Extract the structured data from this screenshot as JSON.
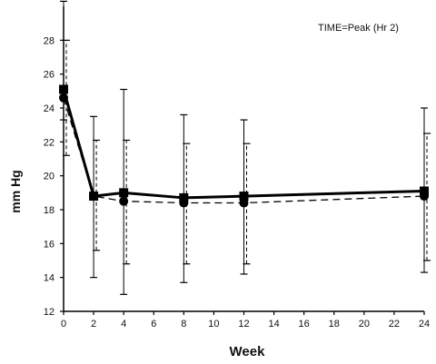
{
  "chart_data": {
    "type": "line",
    "title": "",
    "annotation": "TIME=Peak (Hr 2)",
    "xlabel": "Week",
    "ylabel": "mm Hg",
    "xlim": [
      0,
      24
    ],
    "ylim": [
      12,
      30
    ],
    "x_ticks": [
      0,
      2,
      4,
      6,
      8,
      10,
      12,
      14,
      16,
      18,
      20,
      22,
      24
    ],
    "y_ticks": [
      12,
      14,
      16,
      18,
      20,
      22,
      24,
      26,
      28
    ],
    "grid": false,
    "legend": "none",
    "series": [
      {
        "style": "solid",
        "color": "#000000",
        "x": [
          0,
          2,
          4,
          8,
          12,
          24
        ],
        "y": [
          25.1,
          18.8,
          19.0,
          18.7,
          18.8,
          19.1
        ],
        "err_low": [
          23.3,
          14.0,
          13.0,
          13.7,
          14.2,
          14.3
        ],
        "err_high": [
          30.3,
          23.5,
          25.1,
          23.6,
          23.3,
          24.0
        ]
      },
      {
        "style": "dashed",
        "color": "#000000",
        "x": [
          0,
          2,
          4,
          8,
          12,
          24
        ],
        "y": [
          24.6,
          18.8,
          18.5,
          18.4,
          18.4,
          18.8
        ],
        "err_low": [
          21.2,
          15.6,
          14.8,
          14.8,
          14.8,
          15.0
        ],
        "err_high": [
          28.0,
          22.1,
          22.1,
          21.9,
          21.9,
          22.5
        ]
      }
    ]
  }
}
